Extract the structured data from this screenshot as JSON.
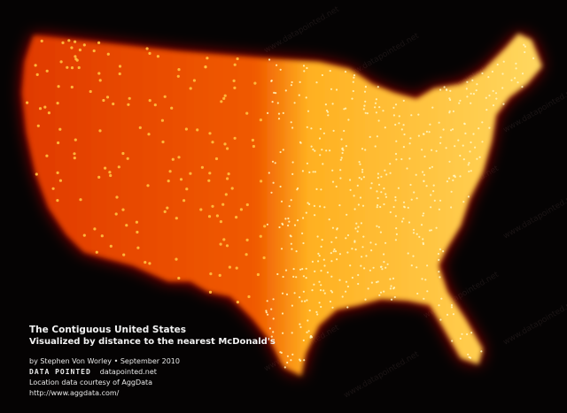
{
  "map": {
    "title": "The Contiguous United States",
    "subtitle": "Visualized by distance to the nearest McDonald's",
    "credits": {
      "author_line": "by Stephen Von Worley • September 2010",
      "brand": "DATA POINTED",
      "brand_url": "datapointed.net",
      "source_line": "Location data courtesy of AggData",
      "source_url": "http://www.aggdata.com/"
    },
    "watermark": "www.datapointed.net",
    "colors": {
      "background": "#050303",
      "far": "#8a0a00",
      "mid": "#ff5a00",
      "near": "#fff2a0"
    }
  }
}
